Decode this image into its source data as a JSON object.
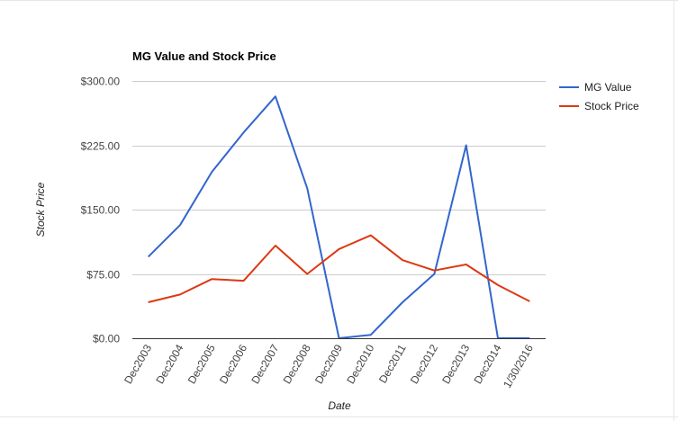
{
  "chart_data": {
    "type": "line",
    "title": "MG Value and Stock Price",
    "xlabel": "Date",
    "ylabel": "Stock Price",
    "categories": [
      "Dec2003",
      "Dec2004",
      "Dec2005",
      "Dec2006",
      "Dec2007",
      "Dec2008",
      "Dec2009",
      "Dec2010",
      "Dec2011",
      "Dec2012",
      "Dec2013",
      "Dec2014",
      "1/30/2016"
    ],
    "y_ticks": [
      "$0.00",
      "$75.00",
      "$150.00",
      "$225.00",
      "$300.00"
    ],
    "ylim": [
      0,
      300
    ],
    "grid": true,
    "legend_position": "right",
    "series": [
      {
        "name": "MG Value",
        "color": "#3366cc",
        "values": [
          95,
          132,
          194,
          240,
          282,
          175,
          0,
          4,
          42,
          75,
          225,
          0,
          0
        ]
      },
      {
        "name": "Stock Price",
        "color": "#dc3912",
        "values": [
          42,
          51,
          69,
          67,
          108,
          75,
          104,
          120,
          91,
          79,
          86,
          62,
          43
        ]
      }
    ]
  }
}
